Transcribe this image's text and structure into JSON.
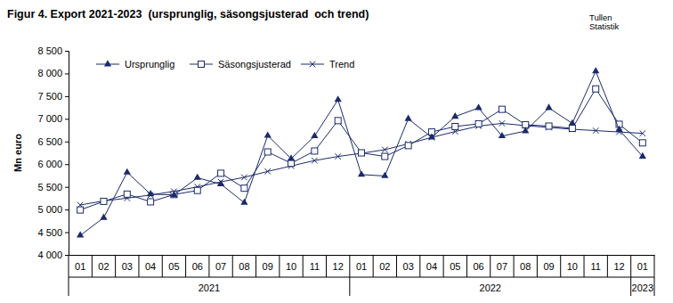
{
  "chart_data": {
    "type": "line",
    "title": "Figur 4. Export 2021-2023  (ursprunglig, säsongsjusterad  och trend)",
    "source": [
      "Tullen",
      "Statistik"
    ],
    "y_label": "Mn euro",
    "categories": [
      "01",
      "02",
      "03",
      "04",
      "05",
      "06",
      "07",
      "08",
      "09",
      "10",
      "11",
      "12",
      "01",
      "02",
      "03",
      "04",
      "05",
      "06",
      "07",
      "08",
      "09",
      "10",
      "11",
      "12",
      "01"
    ],
    "groups": [
      {
        "label": "2021",
        "count": 12
      },
      {
        "label": "2022",
        "count": 12
      },
      {
        "label": "2023",
        "count": 1
      }
    ],
    "ylim": [
      4000,
      8500
    ],
    "yticks": [
      {
        "value": 4000,
        "label": "4 000"
      },
      {
        "value": 4500,
        "label": "4 500"
      },
      {
        "value": 5000,
        "label": "5 000"
      },
      {
        "value": 5500,
        "label": "5 500"
      },
      {
        "value": 6000,
        "label": "6 000"
      },
      {
        "value": 6500,
        "label": "6 500"
      },
      {
        "value": 7000,
        "label": "7 000"
      },
      {
        "value": 7500,
        "label": "7 500"
      },
      {
        "value": 8000,
        "label": "8 000"
      },
      {
        "value": 8500,
        "label": "8 500"
      }
    ],
    "grid": false,
    "legend": "top",
    "series": [
      {
        "name": "Ursprunglig",
        "color": "#1b2a6b",
        "marker": "triangle",
        "values": [
          4430,
          4820,
          5820,
          5340,
          5320,
          5700,
          5560,
          5150,
          6630,
          6120,
          6620,
          7420,
          5770,
          5740,
          7000,
          6590,
          7050,
          7240,
          6620,
          6730,
          7240,
          6900,
          8050,
          6760,
          6170
        ]
      },
      {
        "name": "Säsongsjusterad",
        "color": "#1b2a6b",
        "marker": "square",
        "values": [
          4990,
          5180,
          5340,
          5170,
          5330,
          5420,
          5800,
          5470,
          6270,
          6020,
          6290,
          6960,
          6250,
          6170,
          6410,
          6710,
          6830,
          6890,
          7210,
          6870,
          6840,
          6790,
          7660,
          6880,
          6470
        ]
      },
      {
        "name": "Trend",
        "color": "#1b2a6b",
        "marker": "x",
        "values": [
          5100,
          5190,
          5250,
          5320,
          5400,
          5500,
          5610,
          5710,
          5840,
          5960,
          6080,
          6170,
          6240,
          6320,
          6450,
          6590,
          6720,
          6840,
          6900,
          6850,
          6810,
          6770,
          6740,
          6710,
          6680
        ]
      }
    ]
  }
}
